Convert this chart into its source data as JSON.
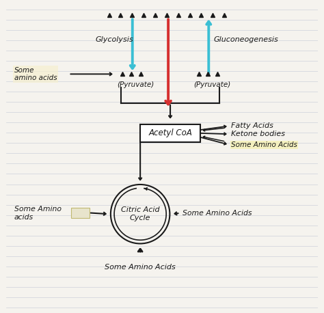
{
  "bg_color": "#f5f3ee",
  "line_color": "#1a1a1a",
  "cyan_color": "#3bbfd4",
  "red_color": "#d63030",
  "paper_line_color": "#c8cdd8",
  "labels": {
    "glycolysis": "Glycolysis",
    "gluconeogenesis": "Gluconeogenesis",
    "pyruvate_left": "(Pyruvate)",
    "pyruvate_right": "(Pyruvate)",
    "some_amino_top": "Some\namino acids",
    "acetyl_coa": "Acetyl CoA",
    "fatty_acids": "Fatty Acids",
    "ketone_bodies": "Ketone bodies",
    "some_amino_acetyl": "Some Amino Acids",
    "citric_acid_cycle": "Citric Acid\nCycle",
    "some_amino_left": "Some Amino\nacids",
    "some_amino_right": "Some Amino Acids",
    "some_amino_bottom": "Some Amino Acids"
  },
  "xlim": [
    0,
    10
  ],
  "ylim": [
    0,
    10
  ],
  "figsize": [
    4.74,
    4.58
  ],
  "dpi": 100
}
